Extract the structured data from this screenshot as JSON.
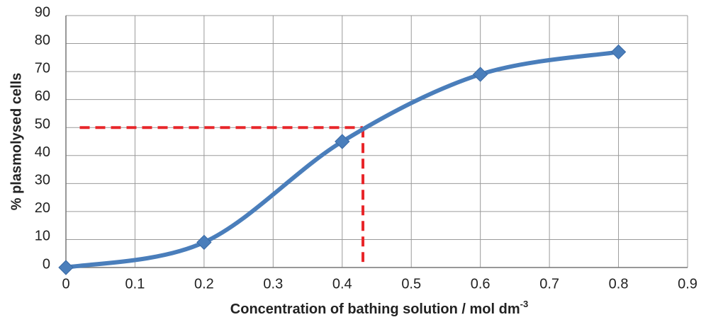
{
  "chart_data": {
    "type": "line",
    "x_label": "Concentration of bathing solution / mol dm",
    "x_label_sup": "-3",
    "y_label": "% plasmolysed cells",
    "series": [
      {
        "x": [
          0,
          0.2,
          0.4,
          0.6,
          0.8
        ],
        "values": [
          0,
          9,
          45,
          69,
          77
        ],
        "color": "#4a7ebb"
      }
    ],
    "xlim": [
      0,
      0.9
    ],
    "xticks": [
      0,
      0.1,
      0.2,
      0.3,
      0.4,
      0.5,
      0.6,
      0.7,
      0.8,
      0.9
    ],
    "ylim": [
      0,
      90
    ],
    "yticks": [
      0,
      10,
      20,
      30,
      40,
      50,
      60,
      70,
      80,
      90
    ],
    "grid": true,
    "reference_lines": [
      {
        "x": [
          0.02,
          0.43
        ],
        "values": [
          50,
          50
        ],
        "color": "#e8262a"
      },
      {
        "x": [
          0.43,
          0.43
        ],
        "values": [
          50,
          2
        ],
        "color": "#e8262a"
      }
    ]
  }
}
